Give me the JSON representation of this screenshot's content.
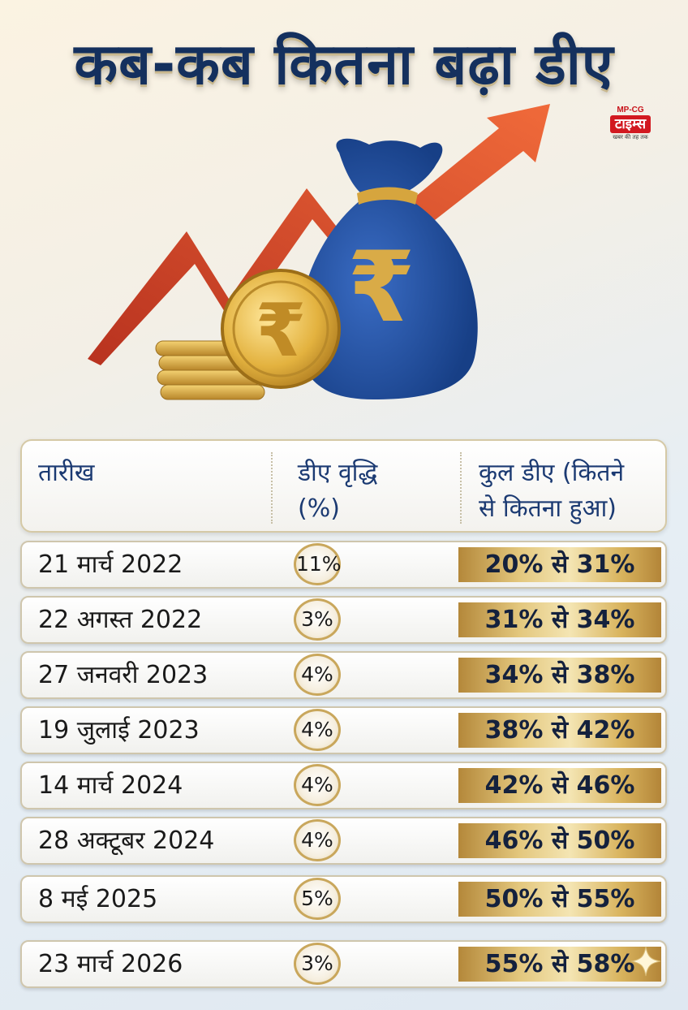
{
  "title": "कब-कब कितना बढ़ा डीए",
  "logo": {
    "top_text": "MP-CG",
    "name": "टाइम्स",
    "tagline": "खबर की तह तक"
  },
  "table": {
    "headers": {
      "date": "तारीख",
      "increase_line1": "डीए वृद्धि",
      "increase_line2": "(%)",
      "total_line1": "कुल डीए (कितने",
      "total_line2": "से कितना हुआ)"
    },
    "rows": [
      {
        "date": "21 मार्च 2022",
        "increase": "11%",
        "total": "20% से 31%"
      },
      {
        "date": "22 अगस्त 2022",
        "increase": "3%",
        "total": "31% से 34%"
      },
      {
        "date": "27 जनवरी 2023",
        "increase": "4%",
        "total": "34% से 38%"
      },
      {
        "date": "19 जुलाई 2023",
        "increase": "4%",
        "total": "38% से 42%"
      },
      {
        "date": "14 मार्च 2024",
        "increase": "4%",
        "total": "42% से 46%"
      },
      {
        "date": "28 अक्टूबर 2024",
        "increase": "4%",
        "total": "46% से 50%"
      },
      {
        "date": "8 मई 2025",
        "increase": "5%",
        "total": "50% से 55%"
      },
      {
        "date": "23 मार्च 2026",
        "increase": "3%",
        "total": "55% से 58%"
      }
    ]
  },
  "hero": {
    "symbol": "₹",
    "icons": [
      "rising-arrow-icon",
      "money-bag-icon",
      "rupee-coin-icon",
      "coin-stack-icon"
    ]
  },
  "colors": {
    "title": "#14305e",
    "header_text": "#1b3a72",
    "gold": "#d9b45e",
    "arrow": "#d8442a",
    "bag": "#1e4fa0"
  }
}
